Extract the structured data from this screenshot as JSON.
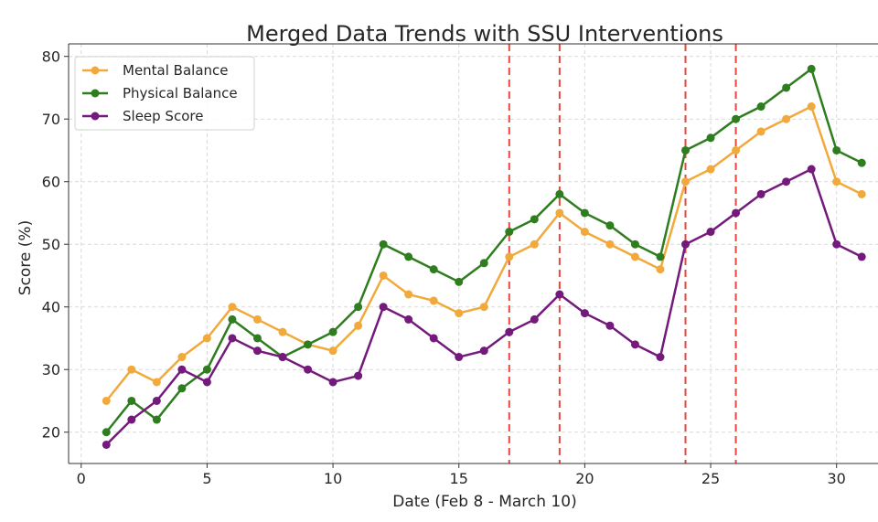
{
  "chart_data": {
    "type": "line",
    "title": "Merged Data Trends with SSU Interventions",
    "xlabel": "Date (Feb 8 - March 10)",
    "ylabel": "Score (%)",
    "xlim": [
      -0.5,
      31.9
    ],
    "ylim": [
      15,
      82
    ],
    "xticks": [
      0,
      5,
      10,
      15,
      20,
      25,
      30
    ],
    "yticks": [
      20,
      30,
      40,
      50,
      60,
      70,
      80
    ],
    "grid": true,
    "legend_position": "top-left",
    "x": [
      1,
      2,
      3,
      4,
      5,
      6,
      7,
      8,
      9,
      10,
      11,
      12,
      13,
      14,
      15,
      16,
      17,
      18,
      19,
      20,
      21,
      22,
      23,
      24,
      25,
      26,
      27,
      28,
      29,
      30,
      31
    ],
    "series": [
      {
        "name": "Mental Balance",
        "color": "#f2a93b",
        "values": [
          25,
          30,
          28,
          32,
          35,
          40,
          38,
          36,
          34,
          33,
          37,
          45,
          42,
          41,
          39,
          40,
          48,
          50,
          55,
          52,
          50,
          48,
          46,
          60,
          62,
          65,
          68,
          70,
          72,
          60,
          58
        ]
      },
      {
        "name": "Physical Balance",
        "color": "#2e7d1f",
        "values": [
          20,
          25,
          22,
          27,
          30,
          38,
          35,
          32,
          34,
          36,
          40,
          50,
          48,
          46,
          44,
          47,
          52,
          54,
          58,
          55,
          53,
          50,
          48,
          65,
          67,
          70,
          72,
          75,
          78,
          65,
          63
        ]
      },
      {
        "name": "Sleep Score",
        "color": "#741a7c",
        "values": [
          18,
          22,
          25,
          30,
          28,
          35,
          33,
          32,
          30,
          28,
          29,
          40,
          38,
          35,
          32,
          33,
          36,
          38,
          42,
          39,
          37,
          34,
          32,
          50,
          52,
          55,
          58,
          60,
          62,
          50,
          48
        ]
      }
    ],
    "interventions": {
      "color": "#e8473f",
      "x": [
        17,
        19,
        24,
        26
      ]
    }
  }
}
